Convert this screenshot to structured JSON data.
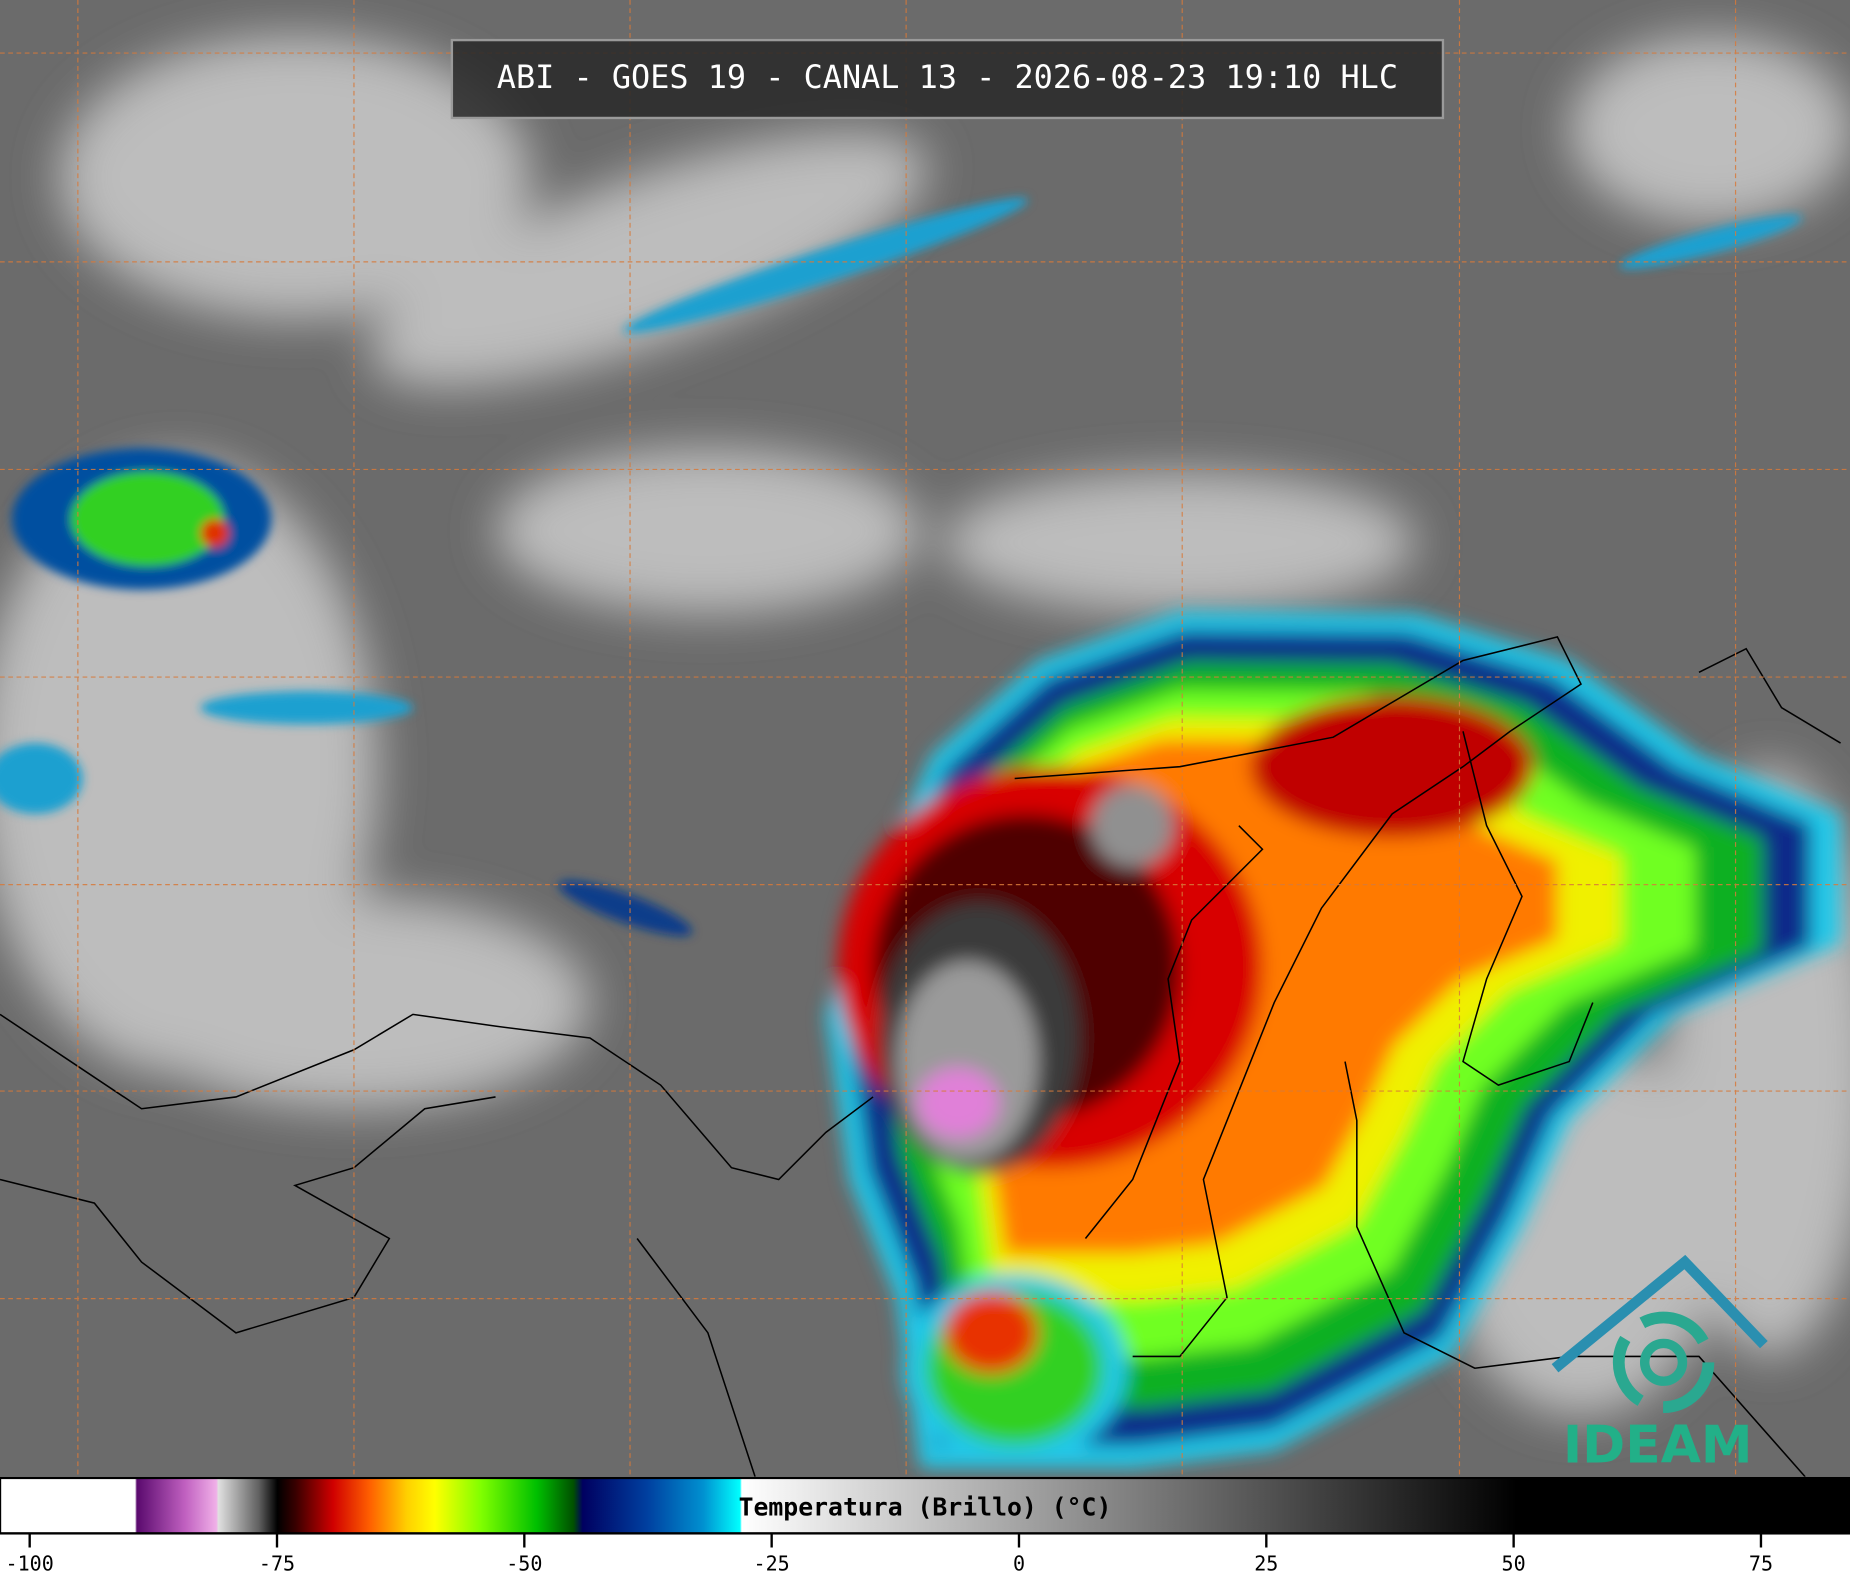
{
  "title": "ABI - GOES 19 - CANAL 13 - 2026-08-23 19:10 HLC",
  "colorbar": {
    "label": "Temperatura (Brillo) (°C)",
    "lim": [
      -103,
      84
    ],
    "ticks": [
      -100,
      -75,
      -50,
      -25,
      0,
      25,
      50,
      75
    ]
  },
  "logo": "IDEAM"
}
